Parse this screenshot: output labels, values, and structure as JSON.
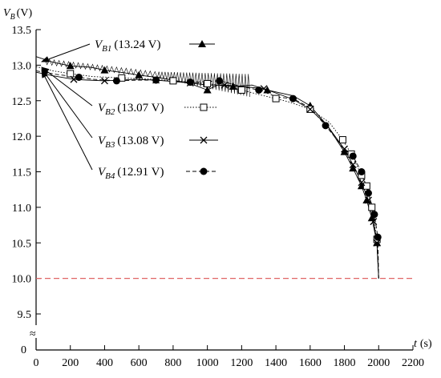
{
  "chart_data": {
    "type": "line",
    "y_axis": {
      "label_main": "V",
      "label_sub": "B",
      "label_unit": "(V)",
      "ylim": [
        9.2,
        13.5
      ],
      "ticks": [
        13.5,
        13.0,
        12.5,
        12.0,
        11.5,
        11.0,
        10.5,
        10.0,
        9.5
      ],
      "tick_labels": [
        "13.5",
        "13.0",
        "12.5",
        "12.0",
        "11.5",
        "11.0",
        "10.5",
        "10.0",
        "9.5"
      ],
      "zero_label": "0",
      "break_symbol": "≈"
    },
    "x_axis": {
      "label_main": "t",
      "label_unit": "(s)",
      "xlim": [
        0,
        2200
      ],
      "ticks": [
        0,
        200,
        400,
        600,
        800,
        1000,
        1200,
        1400,
        1600,
        1800,
        2000,
        2200
      ],
      "tick_labels": [
        "0",
        "200",
        "400",
        "600",
        "800",
        "1000",
        "1200",
        "1400",
        "1600",
        "1800",
        "2000",
        "2200"
      ]
    },
    "threshold": {
      "y": 10.0,
      "color": "#e06666",
      "style": "dashed"
    },
    "series": [
      {
        "name_main": "V",
        "name_sub": "B1",
        "name_value": "(13.24 V)",
        "marker": "triangle",
        "line_style": "solid",
        "x": [
          0,
          100,
          200,
          320,
          400,
          520,
          600,
          700,
          800,
          900,
          1000,
          1060,
          1150,
          1260,
          1350,
          1500,
          1600,
          1700,
          1800,
          1850,
          1900,
          1930,
          1960,
          1990,
          2000
        ],
        "y": [
          13.12,
          13.04,
          12.99,
          12.97,
          12.93,
          12.89,
          12.86,
          12.83,
          12.79,
          12.74,
          12.65,
          12.72,
          12.7,
          12.72,
          12.65,
          12.57,
          12.43,
          12.15,
          11.78,
          11.55,
          11.3,
          11.1,
          10.85,
          10.5,
          10.0
        ]
      },
      {
        "name_main": "V",
        "name_sub": "B2",
        "name_value": "(13.07 V)",
        "marker": "square",
        "line_style": "dotted",
        "x": [
          0,
          100,
          200,
          330,
          500,
          700,
          800,
          900,
          1000,
          1060,
          1200,
          1310,
          1400,
          1480,
          1600,
          1710,
          1790,
          1840,
          1900,
          1930,
          1960,
          1990,
          2000
        ],
        "y": [
          12.98,
          12.92,
          12.88,
          12.84,
          12.82,
          12.8,
          12.78,
          12.76,
          12.74,
          12.72,
          12.65,
          12.58,
          12.53,
          12.48,
          12.38,
          12.2,
          11.95,
          11.75,
          11.45,
          11.3,
          11.0,
          10.55,
          10.0
        ]
      },
      {
        "name_main": "V",
        "name_sub": "B3",
        "name_value": "(13.08 V)",
        "marker": "cross",
        "line_style": "solid",
        "x": [
          0,
          100,
          220,
          300,
          400,
          580,
          700,
          800,
          900,
          1000,
          1100,
          1200,
          1330,
          1500,
          1600,
          1700,
          1800,
          1850,
          1900,
          1940,
          1970,
          1990,
          2000
        ],
        "y": [
          12.9,
          12.85,
          12.8,
          12.79,
          12.78,
          12.8,
          12.79,
          12.77,
          12.75,
          12.72,
          12.72,
          12.7,
          12.67,
          12.52,
          12.38,
          12.15,
          11.82,
          11.6,
          11.35,
          11.1,
          10.8,
          10.5,
          10.0
        ]
      },
      {
        "name_main": "V",
        "name_sub": "B4",
        "name_value": "(12.91 V)",
        "marker": "circle",
        "line_style": "dashed",
        "x": [
          0,
          120,
          250,
          340,
          470,
          600,
          700,
          820,
          900,
          1000,
          1070,
          1200,
          1300,
          1410,
          1500,
          1600,
          1690,
          1790,
          1850,
          1900,
          1940,
          1975,
          1995,
          2000
        ],
        "y": [
          12.92,
          12.87,
          12.83,
          12.8,
          12.78,
          12.79,
          12.79,
          12.77,
          12.76,
          12.77,
          12.78,
          12.7,
          12.65,
          12.55,
          12.53,
          12.4,
          12.15,
          11.85,
          11.72,
          11.5,
          11.2,
          10.9,
          10.58,
          10.0
        ]
      }
    ]
  }
}
